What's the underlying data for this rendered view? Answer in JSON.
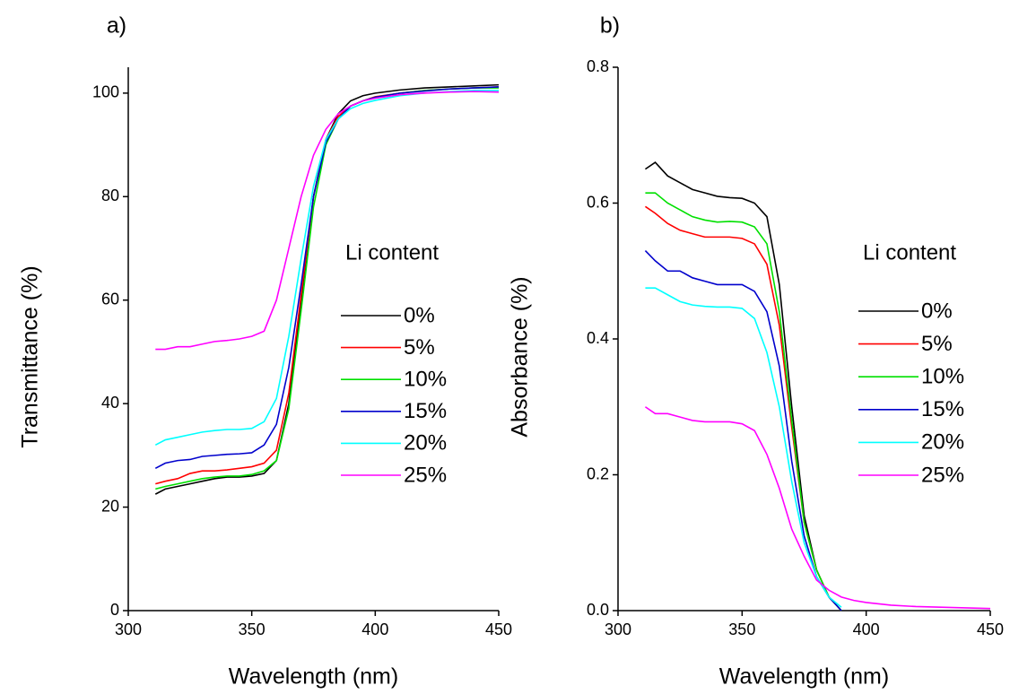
{
  "chart_data": [
    {
      "type": "line",
      "panel_label": "a)",
      "xlabel": "Wavelength (nm)",
      "ylabel": "Transmittance (%)",
      "legend_title": "Li content",
      "x": [
        311,
        315,
        320,
        325,
        330,
        335,
        340,
        345,
        350,
        355,
        360,
        365,
        370,
        375,
        380,
        385,
        390,
        395,
        400,
        410,
        420,
        430,
        440,
        450
      ],
      "xlim": [
        300,
        450
      ],
      "xticks": [
        300,
        350,
        400,
        450
      ],
      "ylim": [
        0,
        105
      ],
      "yticks": [
        0,
        20,
        40,
        60,
        80,
        100
      ],
      "series": [
        {
          "name": "0%",
          "color": "#000000",
          "values": [
            22.5,
            23.5,
            24,
            24.5,
            25,
            25.5,
            25.8,
            25.8,
            26,
            26.5,
            29,
            40,
            60,
            80,
            91,
            96,
            98.5,
            99.5,
            100,
            100.6,
            101,
            101.2,
            101.4,
            101.6
          ]
        },
        {
          "name": "5%",
          "color": "#ff0000",
          "values": [
            24.5,
            25,
            25.5,
            26.5,
            27,
            27,
            27.2,
            27.5,
            27.8,
            28.5,
            31,
            42,
            61,
            80,
            91,
            95.5,
            97.5,
            98.5,
            99.3,
            100,
            100.5,
            100.8,
            101,
            101.2
          ]
        },
        {
          "name": "10%",
          "color": "#00e000",
          "values": [
            23.5,
            24,
            24.5,
            25,
            25.5,
            25.8,
            26,
            26,
            26.3,
            27,
            29,
            39,
            58,
            78,
            90,
            95,
            97.5,
            98.5,
            99.2,
            100,
            100.5,
            100.8,
            101,
            101
          ]
        },
        {
          "name": "15%",
          "color": "#0000cc",
          "values": [
            27.5,
            28.5,
            29,
            29.2,
            29.8,
            30,
            30.2,
            30.3,
            30.5,
            32,
            36,
            47,
            63,
            80,
            90.5,
            95,
            97.5,
            98.5,
            99.2,
            100,
            100.4,
            100.8,
            101,
            101.2
          ]
        },
        {
          "name": "20%",
          "color": "#00ffff",
          "values": [
            32,
            33,
            33.5,
            34,
            34.5,
            34.8,
            35,
            35,
            35.2,
            36.5,
            41,
            53,
            68,
            82,
            91,
            95,
            97,
            98,
            98.6,
            99.5,
            100,
            100.3,
            100.5,
            100.5
          ]
        },
        {
          "name": "25%",
          "color": "#ff00ff",
          "values": [
            50.5,
            50.5,
            51,
            51,
            51.5,
            52,
            52.2,
            52.5,
            53,
            54,
            60,
            70,
            80,
            88,
            93,
            96,
            97.5,
            98.5,
            99,
            99.7,
            100,
            100.2,
            100.3,
            100.2
          ]
        }
      ]
    },
    {
      "type": "line",
      "panel_label": "b)",
      "xlabel": "Wavelength (nm)",
      "ylabel": "Absorbance (%)",
      "legend_title": "Li content",
      "x": [
        311,
        315,
        320,
        325,
        330,
        335,
        340,
        345,
        350,
        355,
        360,
        365,
        370,
        375,
        380,
        385,
        390,
        395,
        400,
        410,
        420,
        430,
        440,
        450
      ],
      "xlim": [
        300,
        450
      ],
      "xticks": [
        300,
        350,
        400,
        450
      ],
      "ylim": [
        0,
        0.8
      ],
      "yticks": [
        {
          "value": 0,
          "label": "0.0"
        },
        0.2,
        0.4,
        0.6,
        0.8
      ],
      "series": [
        {
          "name": "0%",
          "color": "#000000",
          "values": [
            0.65,
            0.66,
            0.64,
            0.63,
            0.62,
            0.615,
            0.61,
            0.608,
            0.607,
            0.6,
            0.58,
            0.48,
            0.3,
            0.14,
            0.06,
            0.02,
            0,
            null,
            null,
            null,
            null,
            null,
            null,
            null
          ]
        },
        {
          "name": "5%",
          "color": "#ff0000",
          "values": [
            0.595,
            0.585,
            0.57,
            0.56,
            0.555,
            0.55,
            0.55,
            0.55,
            0.548,
            0.54,
            0.51,
            0.42,
            0.27,
            0.13,
            0.06,
            0.02,
            0,
            null,
            null,
            null,
            null,
            null,
            null,
            null
          ]
        },
        {
          "name": "10%",
          "color": "#00e000",
          "values": [
            0.615,
            0.615,
            0.6,
            0.59,
            0.58,
            0.575,
            0.572,
            0.573,
            0.572,
            0.565,
            0.54,
            0.44,
            0.28,
            0.13,
            0.06,
            0.02,
            0,
            null,
            null,
            null,
            null,
            null,
            null,
            null
          ]
        },
        {
          "name": "15%",
          "color": "#0000cc",
          "values": [
            0.53,
            0.515,
            0.5,
            0.5,
            0.49,
            0.485,
            0.48,
            0.48,
            0.48,
            0.47,
            0.44,
            0.36,
            0.22,
            0.11,
            0.05,
            0.02,
            0,
            null,
            null,
            null,
            null,
            null,
            null,
            null
          ]
        },
        {
          "name": "20%",
          "color": "#00ffff",
          "values": [
            0.475,
            0.475,
            0.465,
            0.455,
            0.45,
            0.448,
            0.447,
            0.447,
            0.445,
            0.43,
            0.38,
            0.3,
            0.19,
            0.1,
            0.05,
            0.02,
            0.005,
            null,
            null,
            null,
            null,
            null,
            null,
            null
          ]
        },
        {
          "name": "25%",
          "color": "#ff00ff",
          "values": [
            0.3,
            0.29,
            0.29,
            0.285,
            0.28,
            0.278,
            0.278,
            0.278,
            0.275,
            0.265,
            0.23,
            0.18,
            0.12,
            0.08,
            0.045,
            0.03,
            0.02,
            0.015,
            0.012,
            0.008,
            0.006,
            0.005,
            0.004,
            0.003
          ]
        }
      ]
    }
  ]
}
